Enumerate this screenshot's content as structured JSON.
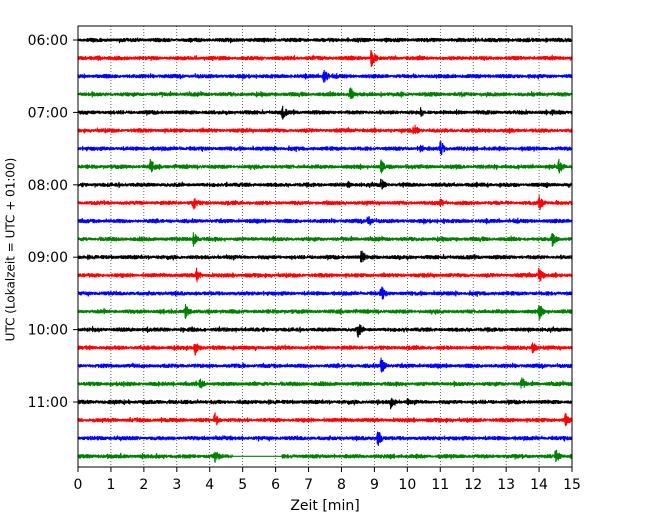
{
  "chart_data": {
    "type": "line",
    "subtype": "helicorder",
    "xlabel": "Zeit  [min]",
    "ylabel": "UTC (Lokalzeit = UTC + 01:00)",
    "xlim": [
      0,
      15
    ],
    "xticks": [
      "0",
      "1",
      "2",
      "3",
      "4",
      "5",
      "6",
      "7",
      "8",
      "9",
      "10",
      "11",
      "12",
      "13",
      "14",
      "15"
    ],
    "grid": "vertical dotted at each minute",
    "row_minutes": 15,
    "start_time": "06:00",
    "row_count": 24,
    "hour_labels": [
      {
        "label": "06:00",
        "row": 0
      },
      {
        "label": "07:00",
        "row": 4
      },
      {
        "label": "08:00",
        "row": 8
      },
      {
        "label": "09:00",
        "row": 12
      },
      {
        "label": "10:00",
        "row": 16
      },
      {
        "label": "11:00",
        "row": 20
      }
    ],
    "color_cycle": [
      "#000000",
      "#ff0000",
      "#0000ff",
      "#008000"
    ],
    "series": [
      {
        "start": "06:00",
        "color": "#000000",
        "events": [
          {
            "t": 0.3,
            "amp": 0.4
          },
          {
            "t": 8.5,
            "amp": 0.35
          },
          {
            "t": 14.2,
            "amp": 0.35
          }
        ]
      },
      {
        "start": "06:15",
        "color": "#ff0000",
        "events": [
          {
            "t": 0.6,
            "amp": 0.45
          },
          {
            "t": 8.9,
            "amp": 1.1
          }
        ]
      },
      {
        "start": "06:30",
        "color": "#0000ff",
        "events": [
          {
            "t": 7.45,
            "amp": 1.0
          }
        ]
      },
      {
        "start": "06:45",
        "color": "#008000",
        "events": [
          {
            "t": 8.25,
            "amp": 1.0
          },
          {
            "t": 9.2,
            "amp": 0.35
          }
        ]
      },
      {
        "start": "07:00",
        "color": "#000000",
        "events": [
          {
            "t": 6.2,
            "amp": 0.95
          },
          {
            "t": 10.4,
            "amp": 0.6
          },
          {
            "t": 14.4,
            "amp": 0.45
          }
        ]
      },
      {
        "start": "07:15",
        "color": "#ff0000",
        "events": [
          {
            "t": 10.2,
            "amp": 0.85
          },
          {
            "t": 13.0,
            "amp": 0.3
          }
        ]
      },
      {
        "start": "07:30",
        "color": "#0000ff",
        "events": [
          {
            "t": 10.4,
            "amp": 0.65
          },
          {
            "t": 11.0,
            "amp": 1.0
          }
        ]
      },
      {
        "start": "07:45",
        "color": "#008000",
        "events": [
          {
            "t": 2.2,
            "amp": 1.0
          },
          {
            "t": 9.2,
            "amp": 0.85
          },
          {
            "t": 14.6,
            "amp": 1.0
          }
        ]
      },
      {
        "start": "08:00",
        "color": "#000000",
        "events": [
          {
            "t": 4.5,
            "amp": 0.4
          },
          {
            "t": 8.2,
            "amp": 0.5
          },
          {
            "t": 9.2,
            "amp": 0.9
          },
          {
            "t": 12.1,
            "amp": 0.4
          }
        ]
      },
      {
        "start": "08:15",
        "color": "#ff0000",
        "events": [
          {
            "t": 3.5,
            "amp": 1.0
          },
          {
            "t": 11.0,
            "amp": 0.6
          },
          {
            "t": 14.0,
            "amp": 1.0
          }
        ]
      },
      {
        "start": "08:30",
        "color": "#0000ff",
        "events": [
          {
            "t": 8.8,
            "amp": 0.8
          },
          {
            "t": 11.1,
            "amp": 0.35
          }
        ]
      },
      {
        "start": "08:45",
        "color": "#008000",
        "events": [
          {
            "t": 3.5,
            "amp": 0.9
          },
          {
            "t": 14.4,
            "amp": 0.95
          }
        ]
      },
      {
        "start": "09:00",
        "color": "#000000",
        "events": [
          {
            "t": 8.6,
            "amp": 0.95
          },
          {
            "t": 9.7,
            "amp": 0.55
          }
        ]
      },
      {
        "start": "09:15",
        "color": "#ff0000",
        "events": [
          {
            "t": 3.6,
            "amp": 0.85
          },
          {
            "t": 14.0,
            "amp": 1.0
          }
        ]
      },
      {
        "start": "09:30",
        "color": "#0000ff",
        "events": [
          {
            "t": 9.2,
            "amp": 1.0
          }
        ]
      },
      {
        "start": "09:45",
        "color": "#008000",
        "events": [
          {
            "t": 3.25,
            "amp": 1.0
          },
          {
            "t": 14.0,
            "amp": 1.0
          }
        ]
      },
      {
        "start": "10:00",
        "color": "#000000",
        "events": [
          {
            "t": 2.1,
            "amp": 0.4
          },
          {
            "t": 8.5,
            "amp": 1.0
          },
          {
            "t": 9.9,
            "amp": 0.4
          }
        ]
      },
      {
        "start": "10:15",
        "color": "#ff0000",
        "events": [
          {
            "t": 3.55,
            "amp": 0.95
          },
          {
            "t": 13.8,
            "amp": 0.85
          }
        ]
      },
      {
        "start": "10:30",
        "color": "#0000ff",
        "events": [
          {
            "t": 9.2,
            "amp": 1.0
          }
        ]
      },
      {
        "start": "10:45",
        "color": "#008000",
        "events": [
          {
            "t": 3.7,
            "amp": 0.75
          },
          {
            "t": 13.45,
            "amp": 1.0
          }
        ]
      },
      {
        "start": "11:00",
        "color": "#000000",
        "events": [
          {
            "t": 9.1,
            "amp": 0.4
          },
          {
            "t": 9.5,
            "amp": 1.0
          },
          {
            "t": 10.0,
            "amp": 0.5
          }
        ]
      },
      {
        "start": "11:15",
        "color": "#ff0000",
        "events": [
          {
            "t": 4.15,
            "amp": 0.95
          },
          {
            "t": 14.8,
            "amp": 0.9
          }
        ]
      },
      {
        "start": "11:30",
        "color": "#0000ff",
        "events": [
          {
            "t": 9.1,
            "amp": 1.0
          }
        ]
      },
      {
        "start": "11:45",
        "color": "#008000",
        "events": [
          {
            "t": 4.15,
            "amp": 1.0
          },
          {
            "t": 14.5,
            "amp": 0.95
          }
        ],
        "gap": [
          4.7,
          6.2
        ]
      }
    ]
  }
}
